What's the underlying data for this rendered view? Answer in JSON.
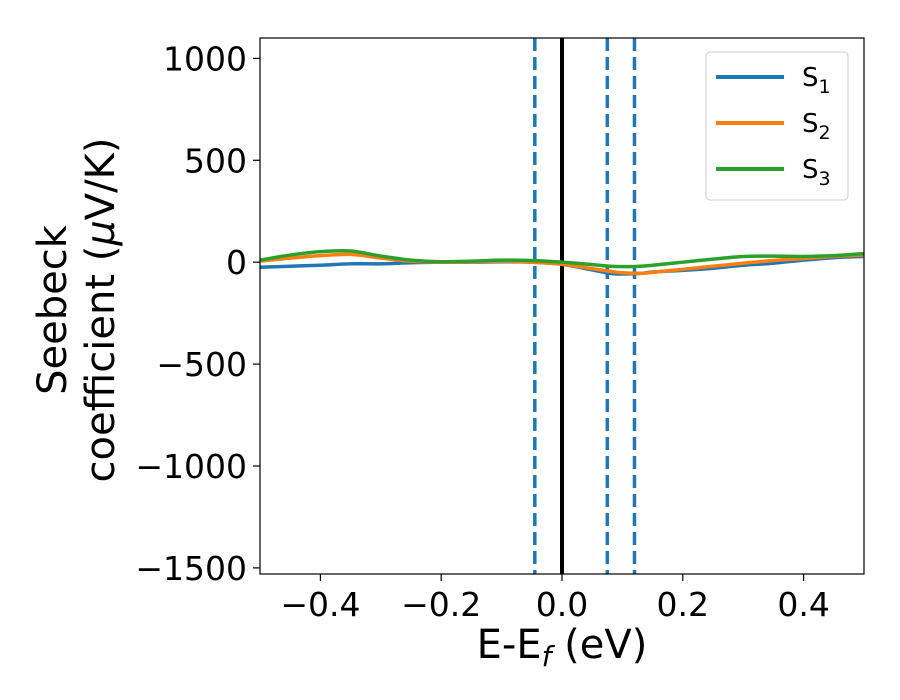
{
  "chart_data": {
    "type": "line",
    "title": "",
    "xlabel": "E-E",
    "xlabel_sub": "f",
    "xlabel_unit": " (eV)",
    "ylabel_line1": "Seebeck",
    "ylabel_line2": "coefficient  (",
    "ylabel_mu": "μ",
    "ylabel_unit": "V/K)",
    "xlim": [
      -0.5,
      0.5
    ],
    "ylim": [
      -1530,
      1100
    ],
    "x_ticks": [
      -0.4,
      -0.2,
      0.0,
      0.2,
      0.4
    ],
    "x_tick_labels": [
      "−0.4",
      "−0.2",
      "0.0",
      "0.2",
      "0.4"
    ],
    "y_ticks": [
      1000,
      500,
      0,
      -500,
      -1000,
      -1500
    ],
    "y_tick_labels": [
      "1000",
      "500",
      "0",
      "−500",
      "−1000",
      "−1500"
    ],
    "grid": false,
    "legend_position": "top-right",
    "vlines": [
      {
        "x": 0.0,
        "style": "solid",
        "color": "#000000"
      },
      {
        "x": -0.045,
        "style": "dashed",
        "color": "#1f77b4"
      },
      {
        "x": 0.075,
        "style": "dashed",
        "color": "#1f77b4"
      },
      {
        "x": 0.12,
        "style": "dashed",
        "color": "#1f77b4"
      }
    ],
    "series": [
      {
        "name": "S",
        "name_sub": "1",
        "color": "#1f77b4",
        "x": [
          -0.5,
          -0.45,
          -0.4,
          -0.35,
          -0.3,
          -0.25,
          -0.2,
          -0.15,
          -0.1,
          -0.05,
          0.0,
          0.05,
          0.08,
          0.1,
          0.13,
          0.15,
          0.2,
          0.25,
          0.3,
          0.35,
          0.4,
          0.45,
          0.5
        ],
        "values": [
          -25,
          -20,
          -15,
          -8,
          -8,
          -3,
          0,
          0,
          2,
          0,
          -10,
          -38,
          -55,
          -58,
          -55,
          -48,
          -40,
          -30,
          -15,
          -5,
          10,
          22,
          28
        ]
      },
      {
        "name": "S",
        "name_sub": "2",
        "color": "#ff7f0e",
        "x": [
          -0.5,
          -0.45,
          -0.4,
          -0.35,
          -0.3,
          -0.25,
          -0.2,
          -0.15,
          -0.1,
          -0.05,
          0.0,
          0.05,
          0.08,
          0.1,
          0.13,
          0.15,
          0.2,
          0.25,
          0.3,
          0.35,
          0.4,
          0.45,
          0.5
        ],
        "values": [
          5,
          20,
          32,
          38,
          20,
          5,
          0,
          2,
          5,
          0,
          -10,
          -32,
          -45,
          -52,
          -55,
          -50,
          -35,
          -20,
          -5,
          8,
          18,
          28,
          35
        ]
      },
      {
        "name": "S",
        "name_sub": "3",
        "color": "#2ca02c",
        "x": [
          -0.5,
          -0.45,
          -0.4,
          -0.35,
          -0.3,
          -0.25,
          -0.2,
          -0.15,
          -0.1,
          -0.05,
          0.0,
          0.05,
          0.08,
          0.1,
          0.13,
          0.15,
          0.2,
          0.25,
          0.3,
          0.35,
          0.4,
          0.45,
          0.5
        ],
        "values": [
          10,
          35,
          52,
          55,
          30,
          10,
          2,
          5,
          10,
          8,
          0,
          -12,
          -20,
          -22,
          -20,
          -15,
          0,
          15,
          28,
          30,
          28,
          32,
          42
        ]
      }
    ]
  }
}
